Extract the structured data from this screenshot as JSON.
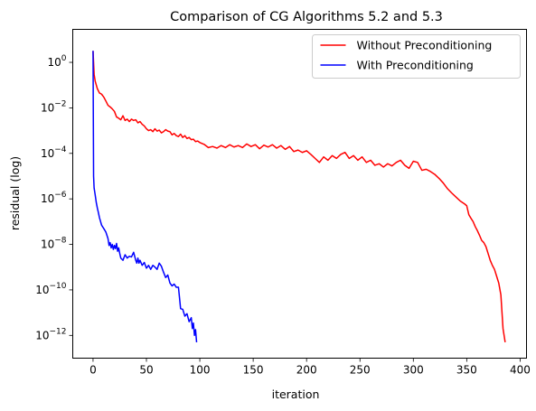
{
  "chart_data": {
    "type": "line",
    "title": "Comparison of CG Algorithms 5.2 and 5.3",
    "xlabel": "iteration",
    "ylabel": "residual (log)",
    "xlim": [
      -19,
      406
    ],
    "ylim_log10": [
      -13,
      1.45
    ],
    "yscale": "log",
    "xticks": [
      0,
      50,
      100,
      150,
      200,
      250,
      300,
      350,
      400
    ],
    "xtick_labels": [
      "0",
      "50",
      "100",
      "150",
      "200",
      "250",
      "300",
      "350",
      "400"
    ],
    "yticks": [
      1,
      0.01,
      0.0001,
      1e-06,
      1e-08,
      1e-10,
      1e-12
    ],
    "ytick_labels": [
      {
        "base": "10",
        "exp": "0"
      },
      {
        "base": "10",
        "exp": "−2"
      },
      {
        "base": "10",
        "exp": "−4"
      },
      {
        "base": "10",
        "exp": "−6"
      },
      {
        "base": "10",
        "exp": "−8"
      },
      {
        "base": "10",
        "exp": "−10"
      },
      {
        "base": "10",
        "exp": "−12"
      }
    ],
    "grid": false,
    "legend_position": "top-right",
    "series": [
      {
        "name": "Without Preconditioning",
        "color": "#ff0000",
        "points": [
          [
            0,
            3.2
          ],
          [
            1,
            0.3
          ],
          [
            2,
            0.15
          ],
          [
            4,
            0.07
          ],
          [
            6,
            0.045
          ],
          [
            8,
            0.04
          ],
          [
            10,
            0.03
          ],
          [
            12,
            0.02
          ],
          [
            14,
            0.013
          ],
          [
            16,
            0.011
          ],
          [
            18,
            0.009
          ],
          [
            20,
            0.007
          ],
          [
            22,
            0.004
          ],
          [
            24,
            0.0035
          ],
          [
            26,
            0.003
          ],
          [
            28,
            0.0045
          ],
          [
            30,
            0.0028
          ],
          [
            32,
            0.0032
          ],
          [
            34,
            0.0025
          ],
          [
            36,
            0.0032
          ],
          [
            38,
            0.0028
          ],
          [
            40,
            0.003
          ],
          [
            42,
            0.0022
          ],
          [
            44,
            0.0025
          ],
          [
            46,
            0.0019
          ],
          [
            48,
            0.0016
          ],
          [
            50,
            0.0012
          ],
          [
            52,
            0.001
          ],
          [
            54,
            0.0011
          ],
          [
            56,
            0.0009
          ],
          [
            58,
            0.0012
          ],
          [
            60,
            0.00095
          ],
          [
            62,
            0.00105
          ],
          [
            64,
            0.0008
          ],
          [
            66,
            0.0009
          ],
          [
            68,
            0.0011
          ],
          [
            70,
            0.00095
          ],
          [
            72,
            0.0009
          ],
          [
            74,
            0.00065
          ],
          [
            76,
            0.00075
          ],
          [
            78,
            0.0006
          ],
          [
            80,
            0.00055
          ],
          [
            82,
            0.0007
          ],
          [
            84,
            0.0005
          ],
          [
            86,
            0.0006
          ],
          [
            88,
            0.00045
          ],
          [
            90,
            0.0005
          ],
          [
            92,
            0.0004
          ],
          [
            94,
            0.00042
          ],
          [
            96,
            0.00033
          ],
          [
            98,
            0.00035
          ],
          [
            100,
            0.0003
          ],
          [
            104,
            0.00025
          ],
          [
            108,
            0.00018
          ],
          [
            112,
            0.0002
          ],
          [
            116,
            0.00017
          ],
          [
            120,
            0.00022
          ],
          [
            124,
            0.00018
          ],
          [
            128,
            0.00024
          ],
          [
            132,
            0.00019
          ],
          [
            136,
            0.00022
          ],
          [
            140,
            0.00018
          ],
          [
            144,
            0.00026
          ],
          [
            148,
            0.0002
          ],
          [
            152,
            0.00024
          ],
          [
            156,
            0.00016
          ],
          [
            160,
            0.00023
          ],
          [
            164,
            0.00019
          ],
          [
            168,
            0.00024
          ],
          [
            172,
            0.00017
          ],
          [
            176,
            0.00022
          ],
          [
            180,
            0.00015
          ],
          [
            184,
            0.0002
          ],
          [
            188,
            0.00012
          ],
          [
            192,
            0.00014
          ],
          [
            196,
            0.00011
          ],
          [
            200,
            0.00013
          ],
          [
            204,
            9e-05
          ],
          [
            208,
            6e-05
          ],
          [
            212,
            4e-05
          ],
          [
            216,
            7e-05
          ],
          [
            220,
            5e-05
          ],
          [
            224,
            8e-05
          ],
          [
            228,
            6e-05
          ],
          [
            232,
            9e-05
          ],
          [
            236,
            0.00011
          ],
          [
            240,
            6e-05
          ],
          [
            244,
            8e-05
          ],
          [
            248,
            5e-05
          ],
          [
            252,
            7e-05
          ],
          [
            256,
            4e-05
          ],
          [
            260,
            5e-05
          ],
          [
            264,
            3e-05
          ],
          [
            268,
            3.5e-05
          ],
          [
            272,
            2.5e-05
          ],
          [
            276,
            3.5e-05
          ],
          [
            280,
            2.8e-05
          ],
          [
            284,
            4e-05
          ],
          [
            288,
            5e-05
          ],
          [
            292,
            3e-05
          ],
          [
            296,
            2.2e-05
          ],
          [
            300,
            4.5e-05
          ],
          [
            304,
            4e-05
          ],
          [
            308,
            1.8e-05
          ],
          [
            312,
            2e-05
          ],
          [
            316,
            1.6e-05
          ],
          [
            320,
            1.2e-05
          ],
          [
            324,
            8e-06
          ],
          [
            328,
            5e-06
          ],
          [
            332,
            2.8e-06
          ],
          [
            336,
            1.8e-06
          ],
          [
            340,
            1.2e-06
          ],
          [
            344,
            8e-07
          ],
          [
            348,
            6e-07
          ],
          [
            350,
            5e-07
          ],
          [
            352,
            2e-07
          ],
          [
            354,
            1.4e-07
          ],
          [
            356,
            1e-07
          ],
          [
            358,
            6e-08
          ],
          [
            360,
            4e-08
          ],
          [
            362,
            2.5e-08
          ],
          [
            364,
            1.5e-08
          ],
          [
            366,
            1.2e-08
          ],
          [
            368,
            8e-09
          ],
          [
            370,
            4e-09
          ],
          [
            372,
            2e-09
          ],
          [
            374,
            1.2e-09
          ],
          [
            376,
            8e-10
          ],
          [
            378,
            4e-10
          ],
          [
            380,
            2e-10
          ],
          [
            382,
            6e-11
          ],
          [
            384,
            2e-12
          ],
          [
            385,
            1e-12
          ],
          [
            386,
            5e-13
          ]
        ]
      },
      {
        "name": "With Preconditioning",
        "color": "#0000ff",
        "points": [
          [
            0,
            3.2
          ],
          [
            0.5,
            1e-05
          ],
          [
            1,
            3e-06
          ],
          [
            2,
            1.5e-06
          ],
          [
            3,
            7e-07
          ],
          [
            4,
            4e-07
          ],
          [
            5,
            2.5e-07
          ],
          [
            6,
            1.5e-07
          ],
          [
            8,
            7e-08
          ],
          [
            10,
            5e-08
          ],
          [
            12,
            3.5e-08
          ],
          [
            14,
            1.8e-08
          ],
          [
            15,
            9e-09
          ],
          [
            16,
            1.2e-08
          ],
          [
            17,
            7e-09
          ],
          [
            18,
            1e-08
          ],
          [
            19,
            6e-09
          ],
          [
            20,
            9e-09
          ],
          [
            21,
            6.5e-09
          ],
          [
            22,
            1.1e-08
          ],
          [
            23,
            5e-09
          ],
          [
            24,
            7e-09
          ],
          [
            25,
            4e-09
          ],
          [
            26,
            2.5e-09
          ],
          [
            28,
            2e-09
          ],
          [
            30,
            3.5e-09
          ],
          [
            32,
            2.5e-09
          ],
          [
            34,
            3e-09
          ],
          [
            36,
            2.8e-09
          ],
          [
            38,
            4.5e-09
          ],
          [
            40,
            2e-09
          ],
          [
            41,
            1.5e-09
          ],
          [
            42,
            2.5e-09
          ],
          [
            43,
            1.5e-09
          ],
          [
            44,
            2e-09
          ],
          [
            46,
            1.2e-09
          ],
          [
            48,
            1.6e-09
          ],
          [
            50,
            9e-10
          ],
          [
            52,
            1.2e-09
          ],
          [
            54,
            8e-10
          ],
          [
            56,
            1.2e-09
          ],
          [
            58,
            1e-09
          ],
          [
            60,
            8e-10
          ],
          [
            62,
            1.5e-09
          ],
          [
            64,
            1.1e-09
          ],
          [
            66,
            6e-10
          ],
          [
            68,
            3.5e-10
          ],
          [
            70,
            4.5e-10
          ],
          [
            72,
            2e-10
          ],
          [
            74,
            1.5e-10
          ],
          [
            76,
            1.8e-10
          ],
          [
            78,
            1.3e-10
          ],
          [
            80,
            1.3e-10
          ],
          [
            82,
            1.5e-11
          ],
          [
            84,
            1.4e-11
          ],
          [
            86,
            7e-12
          ],
          [
            88,
            9e-12
          ],
          [
            90,
            4e-12
          ],
          [
            92,
            6e-12
          ],
          [
            93,
            2e-12
          ],
          [
            94,
            3.5e-12
          ],
          [
            95,
            1e-12
          ],
          [
            96,
            1.8e-12
          ],
          [
            97,
            5e-13
          ]
        ]
      }
    ]
  }
}
